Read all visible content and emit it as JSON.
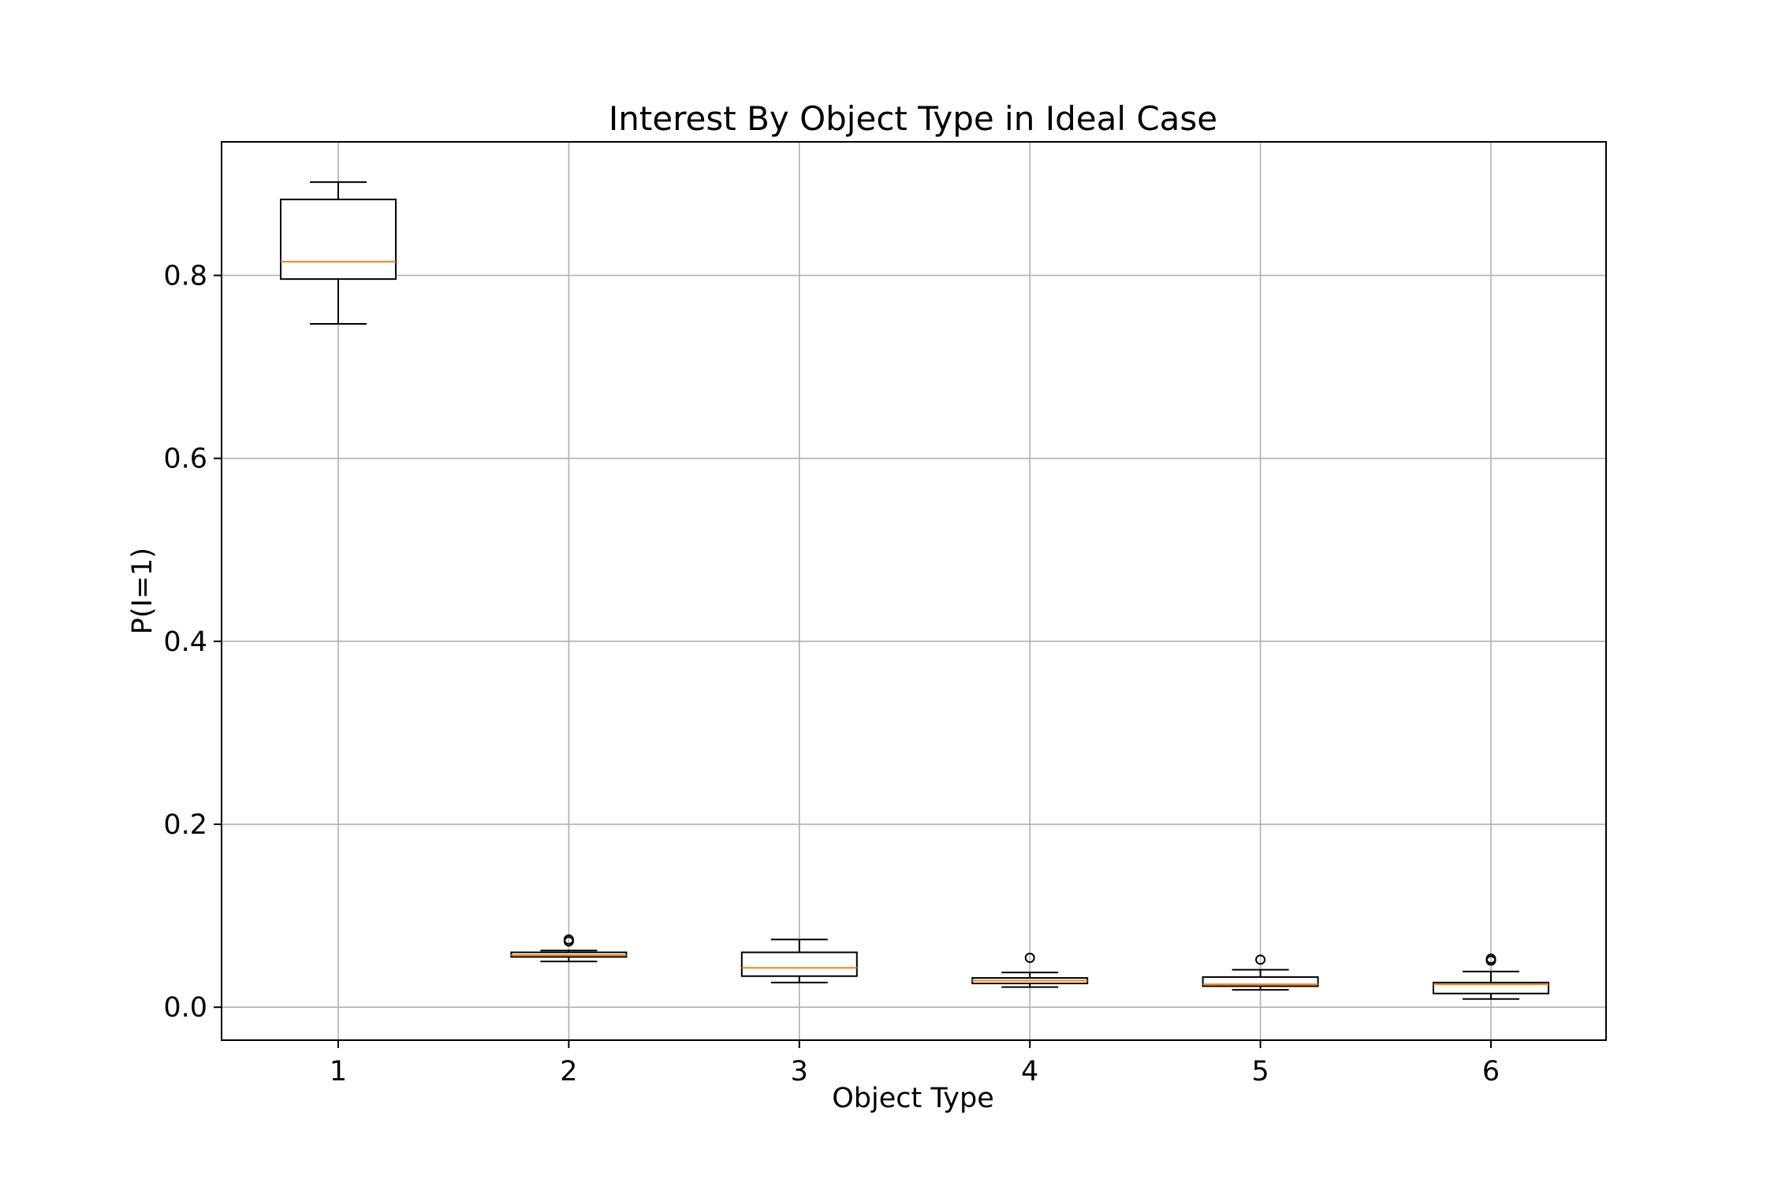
{
  "chart_data": {
    "type": "boxplot",
    "title": "Interest By Object Type in Ideal Case",
    "xlabel": "Object Type",
    "ylabel": "P(I=1)",
    "categories": [
      "1",
      "2",
      "3",
      "4",
      "5",
      "6"
    ],
    "ylim": [
      -0.036,
      0.946
    ],
    "yticks": [
      0.0,
      0.2,
      0.4,
      0.6,
      0.8
    ],
    "ytick_labels": [
      "0.0",
      "0.2",
      "0.4",
      "0.6",
      "0.8"
    ],
    "grid": true,
    "boxes": [
      {
        "category": "1",
        "whisker_low": 0.747,
        "q1": 0.796,
        "median": 0.815,
        "q3": 0.883,
        "whisker_high": 0.902,
        "outliers": []
      },
      {
        "category": "2",
        "whisker_low": 0.05,
        "q1": 0.055,
        "median": 0.057,
        "q3": 0.06,
        "whisker_high": 0.062,
        "outliers": [
          0.072,
          0.074
        ]
      },
      {
        "category": "3",
        "whisker_low": 0.027,
        "q1": 0.034,
        "median": 0.043,
        "q3": 0.06,
        "whisker_high": 0.074,
        "outliers": []
      },
      {
        "category": "4",
        "whisker_low": 0.022,
        "q1": 0.026,
        "median": 0.029,
        "q3": 0.032,
        "whisker_high": 0.038,
        "outliers": [
          0.054
        ]
      },
      {
        "category": "5",
        "whisker_low": 0.019,
        "q1": 0.023,
        "median": 0.025,
        "q3": 0.033,
        "whisker_high": 0.041,
        "outliers": [
          0.052
        ]
      },
      {
        "category": "6",
        "whisker_low": 0.009,
        "q1": 0.015,
        "median": 0.025,
        "q3": 0.027,
        "whisker_high": 0.039,
        "outliers": [
          0.051,
          0.053
        ]
      }
    ],
    "colors": {
      "box": "#000000",
      "median": "#ff7f0e",
      "grid": "#b0b0b0",
      "axes": "#000000"
    }
  }
}
